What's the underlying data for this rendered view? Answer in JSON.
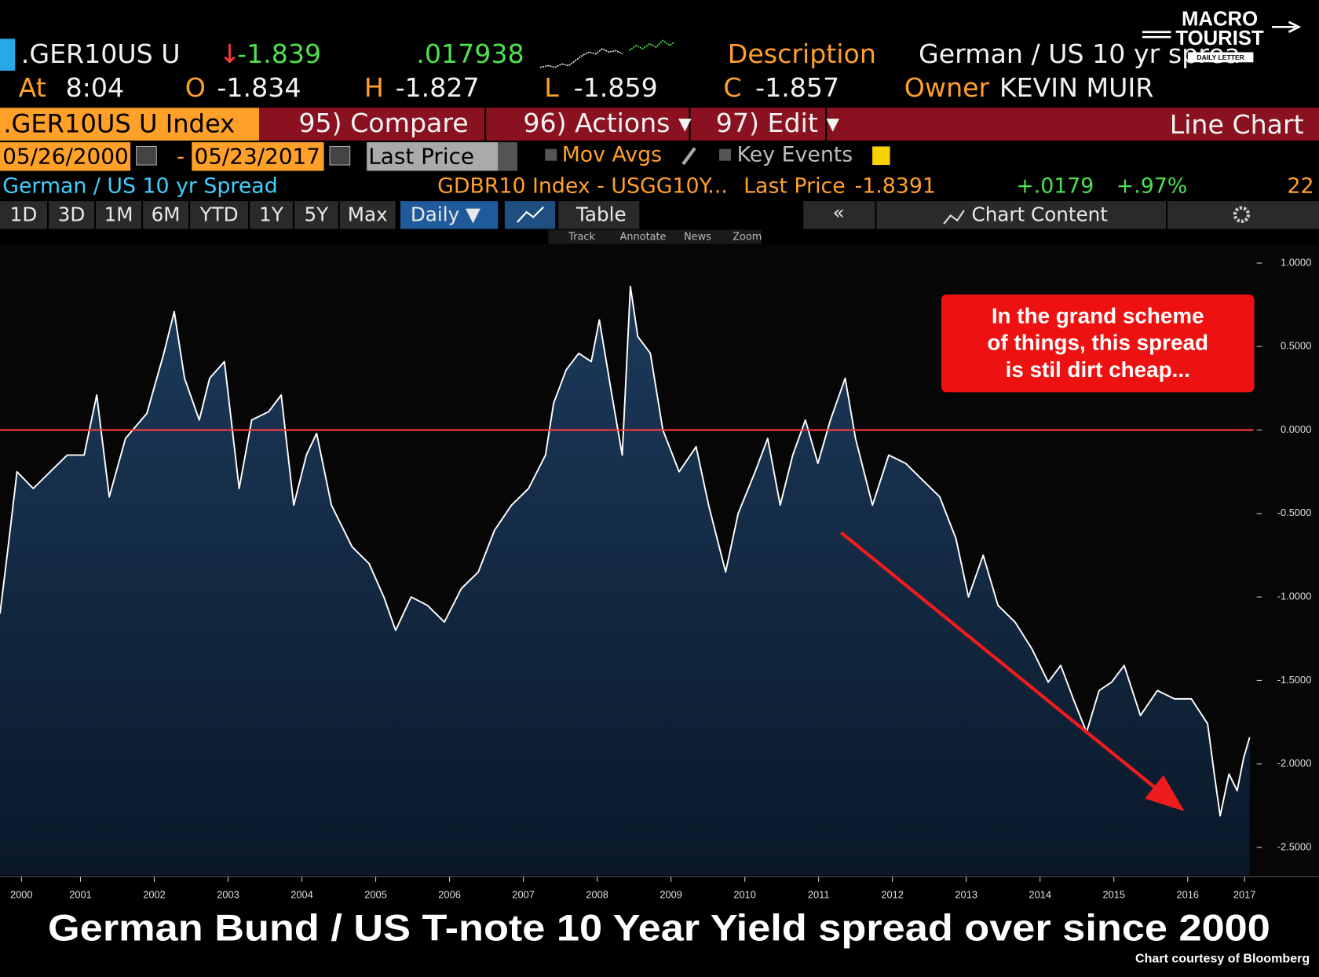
{
  "header": {
    "ticker": ".GER10US U",
    "arrow": "↓",
    "change": "-1.839",
    "pct_change": ".017938",
    "description_label": "Description",
    "description": "German / US 10 yr sprea",
    "time_label": "At",
    "time": "8:04",
    "open_label": "O",
    "open": "-1.834",
    "high_label": "H",
    "high": "-1.827",
    "low_label": "L",
    "low": "-1.859",
    "close_label": "C",
    "close": "-1.857",
    "owner_label": "Owner",
    "owner": "KEVIN MUIR"
  },
  "logo": {
    "line1": "MACRO",
    "line2": "TOURIST",
    "line3": "DAILY LETTER"
  },
  "menu": {
    "security": ".GER10US U Index",
    "compare": "95) Compare",
    "actions": "96) Actions ▾",
    "edit": "97) Edit ▾",
    "view": "Line Chart"
  },
  "range": {
    "start": "05/26/2000",
    "separator": "-",
    "end": "05/23/2017",
    "field": "Last Price",
    "mov_avgs": "Mov Avgs",
    "key_events": "Key Events"
  },
  "legend_row": {
    "name": "German / US 10 yr Spread",
    "formula": "GDBR10 Index - USGG10Y...",
    "field": "Last Price",
    "last": "-1.8391",
    "change": "+.0179",
    "pct": "+.97%",
    "count": "22"
  },
  "periods": [
    "1D",
    "3D",
    "1M",
    "6M",
    "YTD",
    "1Y",
    "5Y",
    "Max"
  ],
  "frequency": "Daily ▼",
  "table": "Table",
  "collapse": "«",
  "chart_content": "Chart Content",
  "tools": [
    "Track",
    "Annotate",
    "News",
    "Zoom"
  ],
  "chart_data": {
    "type": "line",
    "title": "German Bund / US T-note 10 Year Yield spread over since 2000",
    "source": "Chart courtesy of Bloomberg",
    "color": "#ffffff",
    "area_color": "#15304f",
    "x": [
      2000.41,
      2000.52,
      2000.64,
      2000.86,
      2001.09,
      2001.32,
      2001.55,
      2001.72,
      2001.89,
      2002.11,
      2002.4,
      2002.63,
      2002.77,
      2002.91,
      2003.11,
      2003.25,
      2003.45,
      2003.65,
      2003.82,
      2004.05,
      2004.22,
      2004.39,
      2004.56,
      2004.7,
      2004.9,
      2005.18,
      2005.41,
      2005.61,
      2005.77,
      2005.98,
      2006.2,
      2006.43,
      2006.66,
      2006.89,
      2007.11,
      2007.34,
      2007.57,
      2007.8,
      2007.91,
      2008.08,
      2008.25,
      2008.42,
      2008.53,
      2008.7,
      2008.84,
      2008.95,
      2009.05,
      2009.22,
      2009.39,
      2009.61,
      2009.84,
      2010.01,
      2010.24,
      2010.41,
      2010.64,
      2010.81,
      2010.98,
      2011.15,
      2011.32,
      2011.49,
      2011.66,
      2011.86,
      2012.0,
      2012.23,
      2012.45,
      2012.68,
      2012.91,
      2013.14,
      2013.36,
      2013.53,
      2013.73,
      2013.93,
      2014.16,
      2014.39,
      2014.61,
      2014.78,
      2014.95,
      2015.13,
      2015.3,
      2015.47,
      2015.64,
      2015.86,
      2016.09,
      2016.32,
      2016.55,
      2016.77,
      2016.86,
      2016.94,
      2017.06,
      2017.17,
      2017.26,
      2017.34
    ],
    "values": [
      -1.1,
      -0.7,
      -0.25,
      -0.35,
      -0.25,
      -0.15,
      -0.15,
      0.21,
      -0.4,
      -0.05,
      0.1,
      0.46,
      0.71,
      0.31,
      0.06,
      0.31,
      0.41,
      -0.35,
      0.06,
      0.11,
      0.21,
      -0.45,
      -0.15,
      -0.02,
      -0.45,
      -0.7,
      -0.8,
      -1.0,
      -1.2,
      -1.0,
      -1.05,
      -1.15,
      -0.95,
      -0.85,
      -0.6,
      -0.45,
      -0.35,
      -0.15,
      0.16,
      0.36,
      0.46,
      0.41,
      0.66,
      0.21,
      -0.15,
      0.86,
      0.56,
      0.46,
      0.0,
      -0.25,
      -0.1,
      -0.45,
      -0.85,
      -0.5,
      -0.25,
      -0.05,
      -0.45,
      -0.15,
      0.06,
      -0.2,
      0.06,
      0.31,
      -0.05,
      -0.45,
      -0.15,
      -0.2,
      -0.3,
      -0.4,
      -0.65,
      -1.0,
      -0.75,
      -1.05,
      -1.15,
      -1.31,
      -1.51,
      -1.41,
      -1.61,
      -1.81,
      -1.56,
      -1.51,
      -1.41,
      -1.71,
      -1.56,
      -1.61,
      -1.61,
      -1.76,
      -2.06,
      -2.31,
      -2.06,
      -2.16,
      -1.96,
      -1.84
    ],
    "xlim": [
      2000.41,
      2017.39
    ],
    "ylim": [
      -2.666,
      1.114
    ],
    "xticks": [
      {
        "value": 2000.7,
        "label": "2000"
      },
      {
        "value": 2001.5,
        "label": "2001"
      },
      {
        "value": 2002.5,
        "label": "2002"
      },
      {
        "value": 2003.5,
        "label": "2003"
      },
      {
        "value": 2004.5,
        "label": "2004"
      },
      {
        "value": 2005.5,
        "label": "2005"
      },
      {
        "value": 2006.5,
        "label": "2006"
      },
      {
        "value": 2007.5,
        "label": "2007"
      },
      {
        "value": 2008.5,
        "label": "2008"
      },
      {
        "value": 2009.5,
        "label": "2009"
      },
      {
        "value": 2010.5,
        "label": "2010"
      },
      {
        "value": 2011.5,
        "label": "2011"
      },
      {
        "value": 2012.5,
        "label": "2012"
      },
      {
        "value": 2013.5,
        "label": "2013"
      },
      {
        "value": 2014.5,
        "label": "2014"
      },
      {
        "value": 2015.5,
        "label": "2015"
      },
      {
        "value": 2016.5,
        "label": "2016"
      },
      {
        "value": 2017.27,
        "label": "2017"
      }
    ],
    "yticks": [
      {
        "value": 1,
        "label": "1.0000"
      },
      {
        "value": 0.5,
        "label": "0.5000"
      },
      {
        "value": 0,
        "label": "0.0000"
      },
      {
        "value": -0.5,
        "label": "-0.5000"
      },
      {
        "value": -1,
        "label": "-1.0000"
      },
      {
        "value": -1.5,
        "label": "-1.5000"
      },
      {
        "value": -2,
        "label": "-2.0000"
      },
      {
        "value": -2.5,
        "label": "-2.5000"
      }
    ],
    "hline": {
      "value": 0,
      "color": "#ff3b3b"
    },
    "annotation": [
      "In the grand scheme",
      "of things, this spread",
      "is stil dirt cheap..."
    ]
  }
}
